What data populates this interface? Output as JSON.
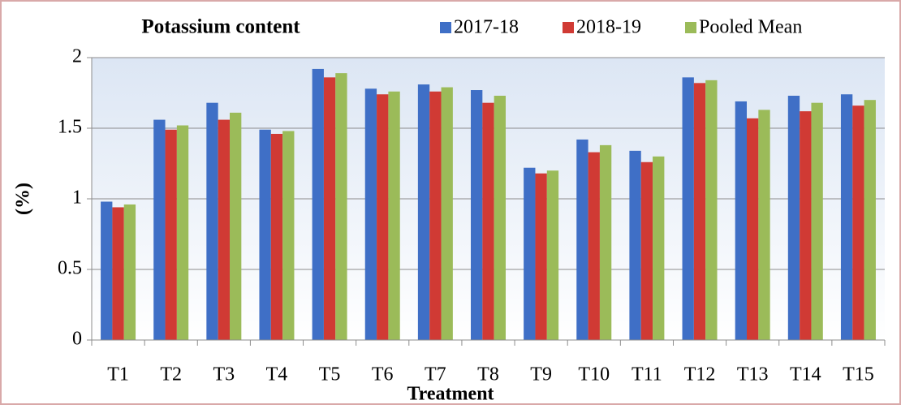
{
  "chart_data": {
    "type": "bar",
    "title": "Potassium content",
    "x_label": "Treatment",
    "y_label": "(%)",
    "categories": [
      "T1",
      "T2",
      "T3",
      "T4",
      "T5",
      "T6",
      "T7",
      "T8",
      "T9",
      "T10",
      "T11",
      "T12",
      "T13",
      "T14",
      "T15"
    ],
    "series": [
      {
        "name": "2017-18",
        "color": "#3f6fc6",
        "values": [
          0.98,
          1.56,
          1.68,
          1.49,
          1.92,
          1.78,
          1.81,
          1.77,
          1.22,
          1.42,
          1.34,
          1.86,
          1.69,
          1.73,
          1.74
        ]
      },
      {
        "name": "2018-19",
        "color": "#d03a34",
        "values": [
          0.94,
          1.49,
          1.56,
          1.46,
          1.86,
          1.74,
          1.76,
          1.68,
          1.18,
          1.33,
          1.26,
          1.82,
          1.57,
          1.62,
          1.66
        ]
      },
      {
        "name": "Pooled Mean",
        "color": "#9bbb59",
        "values": [
          0.96,
          1.52,
          1.61,
          1.48,
          1.89,
          1.76,
          1.79,
          1.73,
          1.2,
          1.38,
          1.3,
          1.84,
          1.63,
          1.68,
          1.7
        ]
      }
    ],
    "ylim": [
      0,
      2
    ],
    "yticks": [
      0,
      0.5,
      1,
      1.5,
      2
    ],
    "grid": true
  }
}
